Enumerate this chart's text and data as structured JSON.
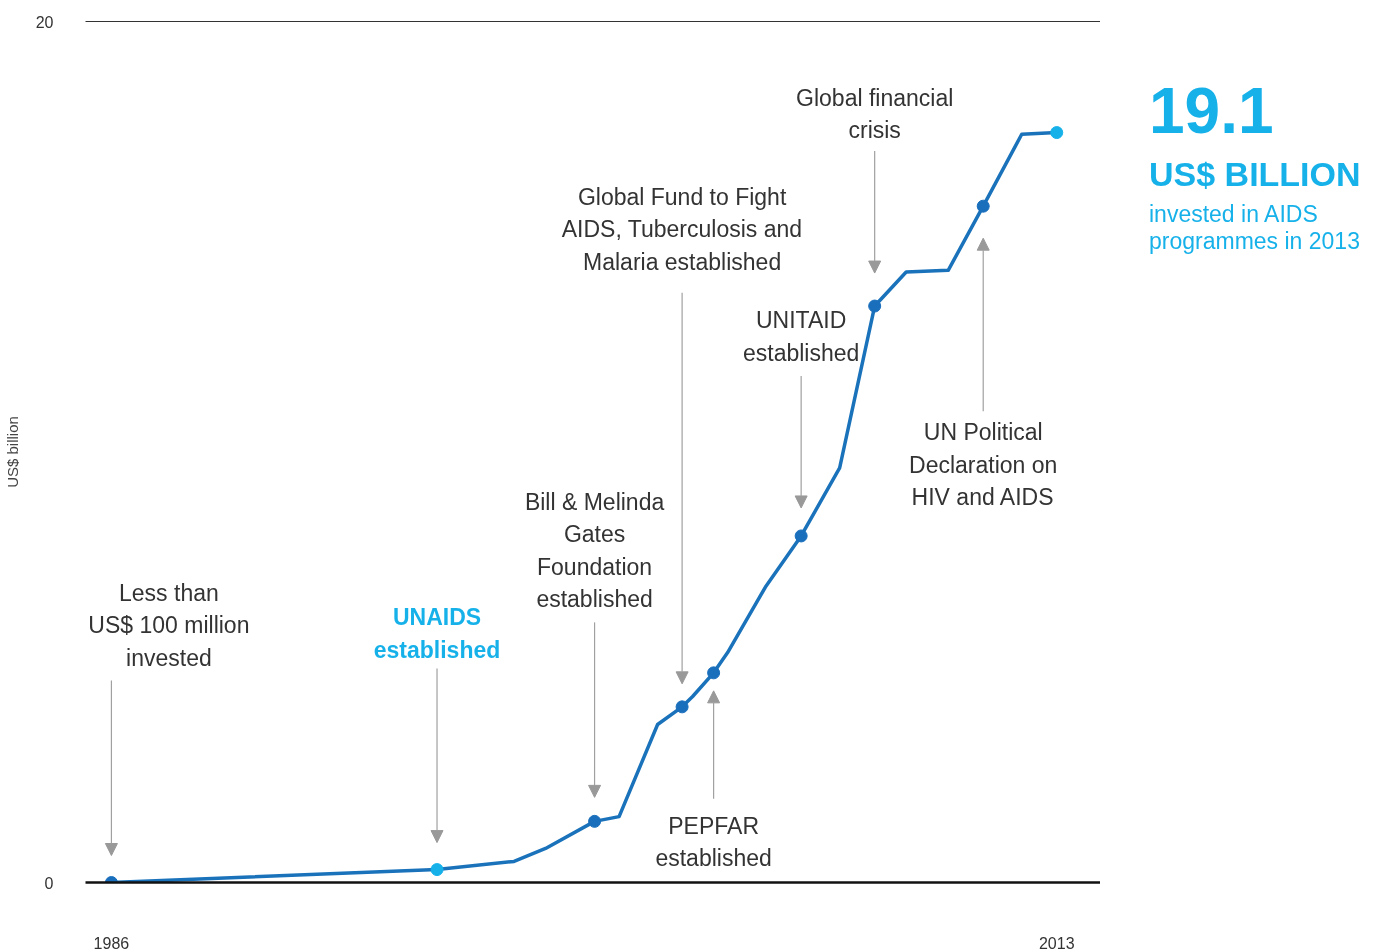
{
  "chart_data": {
    "type": "line",
    "ylabel": "US$ billion",
    "x": [
      1986,
      1995.3,
      1997.5,
      1998.4,
      1999.8,
      2000.5,
      2001.6,
      2002.3,
      2002.6,
      2003.2,
      2003.6,
      2004.7,
      2005.7,
      2006.8,
      2007.8,
      2008.7,
      2009.9,
      2010.9,
      2012,
      2013
    ],
    "series": [
      {
        "color": "#1a72bb",
        "values": [
          0,
          0.3,
          0.49,
          0.79,
          1.42,
          1.53,
          3.67,
          4.08,
          4.32,
          4.87,
          5.34,
          6.89,
          8.05,
          9.63,
          13.39,
          14.18,
          14.22,
          15.71,
          17.38,
          17.42
        ]
      },
      {
        "type": "scatter",
        "marker": "circle",
        "x": [
          1986,
          1995.3,
          1999.8,
          2002.3,
          2003.2,
          2005.7,
          2007.8,
          2010.9,
          2013
        ],
        "colors": [
          "#1a6fbd",
          "#17b1ea",
          "#1a6fbd",
          "#1a6fbd",
          "#1a6fbd",
          "#1a6fbd",
          "#1a6fbd",
          "#1a6fbd",
          "#17b1ea"
        ],
        "values": [
          0,
          0.3,
          1.42,
          4.08,
          4.87,
          8.05,
          13.39,
          15.71,
          17.42
        ]
      }
    ],
    "xlim": [
      1985.26,
      2014.25
    ],
    "xticks": [
      1986,
      2013
    ],
    "ylim": [
      0,
      20
    ],
    "yticks": [
      0,
      20
    ],
    "annotations": [
      "Less than\nUS$ 100 million\ninvested",
      "UNAIDS\nestablished",
      "Bill & Melinda\nGates\nFoundation\nestablished",
      "Global Fund to Fight\nAIDS, Tuberculosis and\nMalaria established",
      "PEPFAR\nestablished",
      "UNITAID\nestablished",
      "Global financial\ncrisis",
      "UN Political\nDeclaration on\nHIV and AIDS",
      "19.1",
      "US$ BILLION",
      "invested in AIDS\nprogrammes in 2013"
    ]
  }
}
